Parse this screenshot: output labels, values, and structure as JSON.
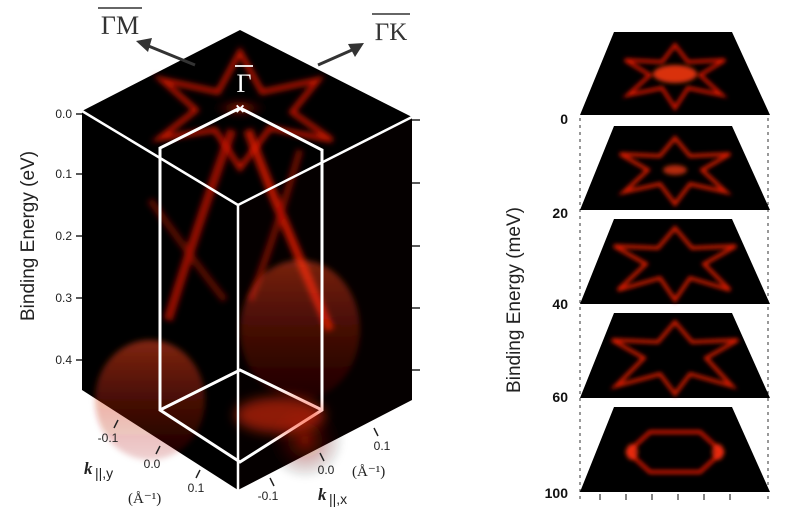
{
  "left_panel": {
    "energy_axis": {
      "label": "Binding Energy (eV)",
      "ticks": [
        "0.0",
        "0.1",
        "0.2",
        "0.3",
        "0.4"
      ]
    },
    "directions": {
      "gamma_m": "ΓM",
      "gamma_k": "ΓK",
      "gamma_point": "Γ"
    },
    "ky_axis": {
      "ticks": [
        "-0.1",
        "0.0",
        "0.1"
      ],
      "label_k": "k",
      "label_sub": "||,y",
      "unit": "(Å⁻¹)"
    },
    "kx_axis": {
      "ticks": [
        "-0.1",
        "0.0",
        "0.1"
      ],
      "label_k": "k",
      "label_sub": "||,x",
      "unit": "(Å⁻¹)"
    }
  },
  "right_panel": {
    "label": "Binding Energy  (meV)",
    "ticks": [
      "0",
      "20",
      "40",
      "60",
      "100"
    ],
    "slices": [
      {
        "energy_mev": 0,
        "shape": "hexagram-with-center"
      },
      {
        "energy_mev": 20,
        "shape": "hexagram"
      },
      {
        "energy_mev": 40,
        "shape": "hexagram"
      },
      {
        "energy_mev": 60,
        "shape": "hexagram"
      },
      {
        "energy_mev": 100,
        "shape": "hexagon"
      }
    ]
  },
  "colors": {
    "background": "#000000",
    "intensity": "#ff2200",
    "frame": "#ffffff"
  }
}
